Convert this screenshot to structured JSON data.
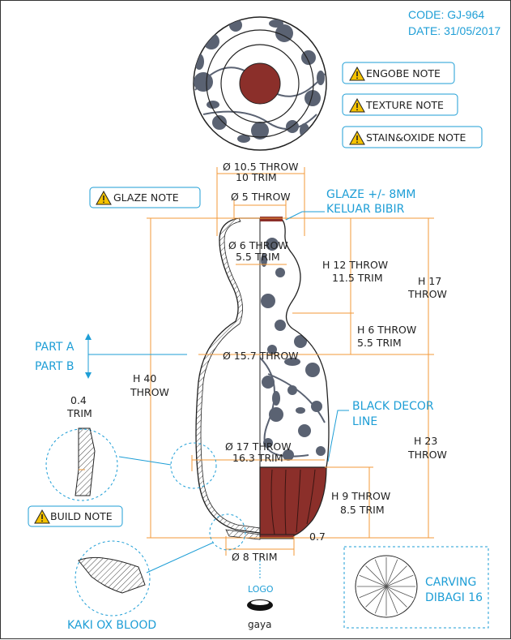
{
  "header": {
    "code": "CODE: GJ-964",
    "date": "DATE: 31/05/2017"
  },
  "notes": {
    "engobe": "ENGOBE NOTE",
    "texture": "TEXTURE NOTE",
    "stain": "STAIN&OXIDE NOTE",
    "glaze": "GLAZE NOTE",
    "build": "BUILD NOTE"
  },
  "dims": {
    "rim_throw": "Ø 10.5 THROW",
    "rim_trim": "10 TRIM",
    "mouth_throw": "Ø 5 THROW",
    "neck_throw": "Ø 6 THROW",
    "neck_trim": "5.5 TRIM",
    "h12_throw": "H 12 THROW",
    "h12_trim": "11.5 TRIM",
    "h17_h": "H 17",
    "h17_throw": "THROW",
    "h6_throw": "H 6 THROW",
    "h6_trim": "5.5 TRIM",
    "d157": "Ø 15.7 THROW",
    "h40_h": "H 40",
    "h40_throw": "THROW",
    "d17_throw": "Ø 17 THROW",
    "d163_trim": "16.3 TRIM",
    "h23_h": "H 23",
    "h23_throw": "THROW",
    "h9_throw": "H 9 THROW",
    "h9_trim": "8.5 TRIM",
    "foot_gap": "0.7",
    "foot_trim": "Ø 8 TRIM",
    "wall_val": "0.4",
    "wall_trim": "TRIM"
  },
  "labels": {
    "glaze_1": "GLAZE +/- 8MM",
    "glaze_2": "KELUAR BIBIR",
    "part_a": "PART A",
    "part_b": "PART B",
    "black_decor_1": "BLACK DECOR",
    "black_decor_2": "LINE",
    "kaki": "KAKI OX BLOOD",
    "carving_1": "CARVING",
    "carving_2": "DIBAGI 16",
    "logo_label": "LOGO",
    "logo_word": "gaya"
  },
  "colors": {
    "accent": "#1e9ed6",
    "dimension": "#f39a3a",
    "oxblood": "#8b2f2a",
    "pattern": "#5a6272"
  }
}
